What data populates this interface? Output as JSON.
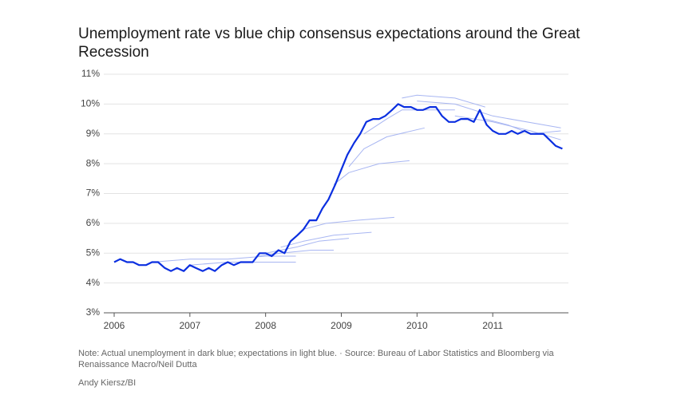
{
  "chart_data": {
    "type": "line",
    "title": "Unemployment rate vs blue chip consensus expectations around the Great Recession",
    "note": "Note: Actual unemployment in dark blue; expectations in light blue. · Source: Bureau of Labor Statistics and Bloomberg via Renaissance Macro/Neil Dutta",
    "credit": "Andy Kiersz/BI",
    "xlim": [
      2006,
      2012
    ],
    "xticks": [
      2006,
      2007,
      2008,
      2009,
      2010,
      2011
    ],
    "ylim": [
      3,
      11
    ],
    "yticks": [
      {
        "value": 3,
        "label": "3%"
      },
      {
        "value": 4,
        "label": "4%"
      },
      {
        "value": 5,
        "label": "5%"
      },
      {
        "value": 6,
        "label": "6%"
      },
      {
        "value": 7,
        "label": "7%"
      },
      {
        "value": 8,
        "label": "8%"
      },
      {
        "value": 9,
        "label": "9%"
      },
      {
        "value": 10,
        "label": "10%"
      },
      {
        "value": 11,
        "label": "11%"
      }
    ],
    "grid": true,
    "series": [
      {
        "color": "#a8b6f2",
        "width": 1,
        "x": [
          2006.5,
          2007.0,
          2007.5,
          2008.0,
          2008.4
        ],
        "values": [
          4.7,
          4.8,
          4.8,
          4.9,
          4.9
        ]
      },
      {
        "color": "#a8b6f2",
        "width": 1,
        "x": [
          2007.0,
          2007.5,
          2008.0,
          2008.4
        ],
        "values": [
          4.6,
          4.7,
          4.7,
          4.7
        ]
      },
      {
        "color": "#a8b6f2",
        "width": 1,
        "x": [
          2007.9,
          2008.2,
          2008.6,
          2008.9
        ],
        "values": [
          4.9,
          5.0,
          5.1,
          5.1
        ]
      },
      {
        "color": "#a8b6f2",
        "width": 1,
        "x": [
          2008.0,
          2008.4,
          2008.7,
          2009.1
        ],
        "values": [
          5.0,
          5.2,
          5.4,
          5.5
        ]
      },
      {
        "color": "#a8b6f2",
        "width": 1,
        "x": [
          2008.2,
          2008.5,
          2008.9,
          2009.4
        ],
        "values": [
          5.2,
          5.4,
          5.6,
          5.7
        ]
      },
      {
        "color": "#a8b6f2",
        "width": 1,
        "x": [
          2008.5,
          2008.8,
          2009.2,
          2009.7
        ],
        "values": [
          5.8,
          6.0,
          6.1,
          6.2
        ]
      },
      {
        "color": "#a8b6f2",
        "width": 1,
        "x": [
          2008.9,
          2009.1,
          2009.5,
          2009.9
        ],
        "values": [
          7.3,
          7.7,
          8.0,
          8.1
        ]
      },
      {
        "color": "#a8b6f2",
        "width": 1,
        "x": [
          2009.1,
          2009.3,
          2009.6,
          2010.1
        ],
        "values": [
          7.9,
          8.5,
          8.9,
          9.2
        ]
      },
      {
        "color": "#a8b6f2",
        "width": 1,
        "x": [
          2009.3,
          2009.6,
          2009.8,
          2010.5
        ],
        "values": [
          9.0,
          9.5,
          9.8,
          9.8
        ]
      },
      {
        "color": "#a8b6f2",
        "width": 1,
        "x": [
          2009.8,
          2010.0,
          2010.5,
          2010.9
        ],
        "values": [
          10.2,
          10.3,
          10.2,
          9.9
        ]
      },
      {
        "color": "#a8b6f2",
        "width": 1,
        "x": [
          2010.0,
          2010.5,
          2011.0,
          2011.9
        ],
        "values": [
          10.1,
          10.0,
          9.6,
          9.2
        ]
      },
      {
        "color": "#a8b6f2",
        "width": 1,
        "x": [
          2010.5,
          2011.0,
          2011.5,
          2011.9
        ],
        "values": [
          9.6,
          9.4,
          9.1,
          8.8
        ]
      },
      {
        "color": "#a8b6f2",
        "width": 1,
        "x": [
          2010.9,
          2011.2,
          2011.5,
          2011.9
        ],
        "values": [
          9.5,
          9.3,
          9.0,
          9.1
        ]
      },
      {
        "color": "#0b2fe0",
        "width": 2.2,
        "x": [
          2006.0,
          2006.08,
          2006.17,
          2006.25,
          2006.33,
          2006.42,
          2006.5,
          2006.58,
          2006.67,
          2006.75,
          2006.83,
          2006.92,
          2007.0,
          2007.08,
          2007.17,
          2007.25,
          2007.33,
          2007.42,
          2007.5,
          2007.58,
          2007.67,
          2007.75,
          2007.83,
          2007.92,
          2008.0,
          2008.08,
          2008.17,
          2008.25,
          2008.33,
          2008.42,
          2008.5,
          2008.58,
          2008.67,
          2008.75,
          2008.83,
          2008.92,
          2009.0,
          2009.08,
          2009.17,
          2009.25,
          2009.33,
          2009.42,
          2009.5,
          2009.58,
          2009.67,
          2009.75,
          2009.83,
          2009.92,
          2010.0,
          2010.08,
          2010.17,
          2010.25,
          2010.33,
          2010.42,
          2010.5,
          2010.58,
          2010.67,
          2010.75,
          2010.83,
          2010.92,
          2011.0,
          2011.08,
          2011.17,
          2011.25,
          2011.33,
          2011.42,
          2011.5,
          2011.58,
          2011.67,
          2011.75,
          2011.83,
          2011.92
        ],
        "values": [
          4.7,
          4.8,
          4.7,
          4.7,
          4.6,
          4.6,
          4.7,
          4.7,
          4.5,
          4.4,
          4.5,
          4.4,
          4.6,
          4.5,
          4.4,
          4.5,
          4.4,
          4.6,
          4.7,
          4.6,
          4.7,
          4.7,
          4.7,
          5.0,
          5.0,
          4.9,
          5.1,
          5.0,
          5.4,
          5.6,
          5.8,
          6.1,
          6.1,
          6.5,
          6.8,
          7.3,
          7.8,
          8.3,
          8.7,
          9.0,
          9.4,
          9.5,
          9.5,
          9.6,
          9.8,
          10.0,
          9.9,
          9.9,
          9.8,
          9.8,
          9.9,
          9.9,
          9.6,
          9.4,
          9.4,
          9.5,
          9.5,
          9.4,
          9.8,
          9.3,
          9.1,
          9.0,
          9.0,
          9.1,
          9.0,
          9.1,
          9.0,
          9.0,
          9.0,
          8.8,
          8.6,
          8.5
        ]
      }
    ]
  }
}
